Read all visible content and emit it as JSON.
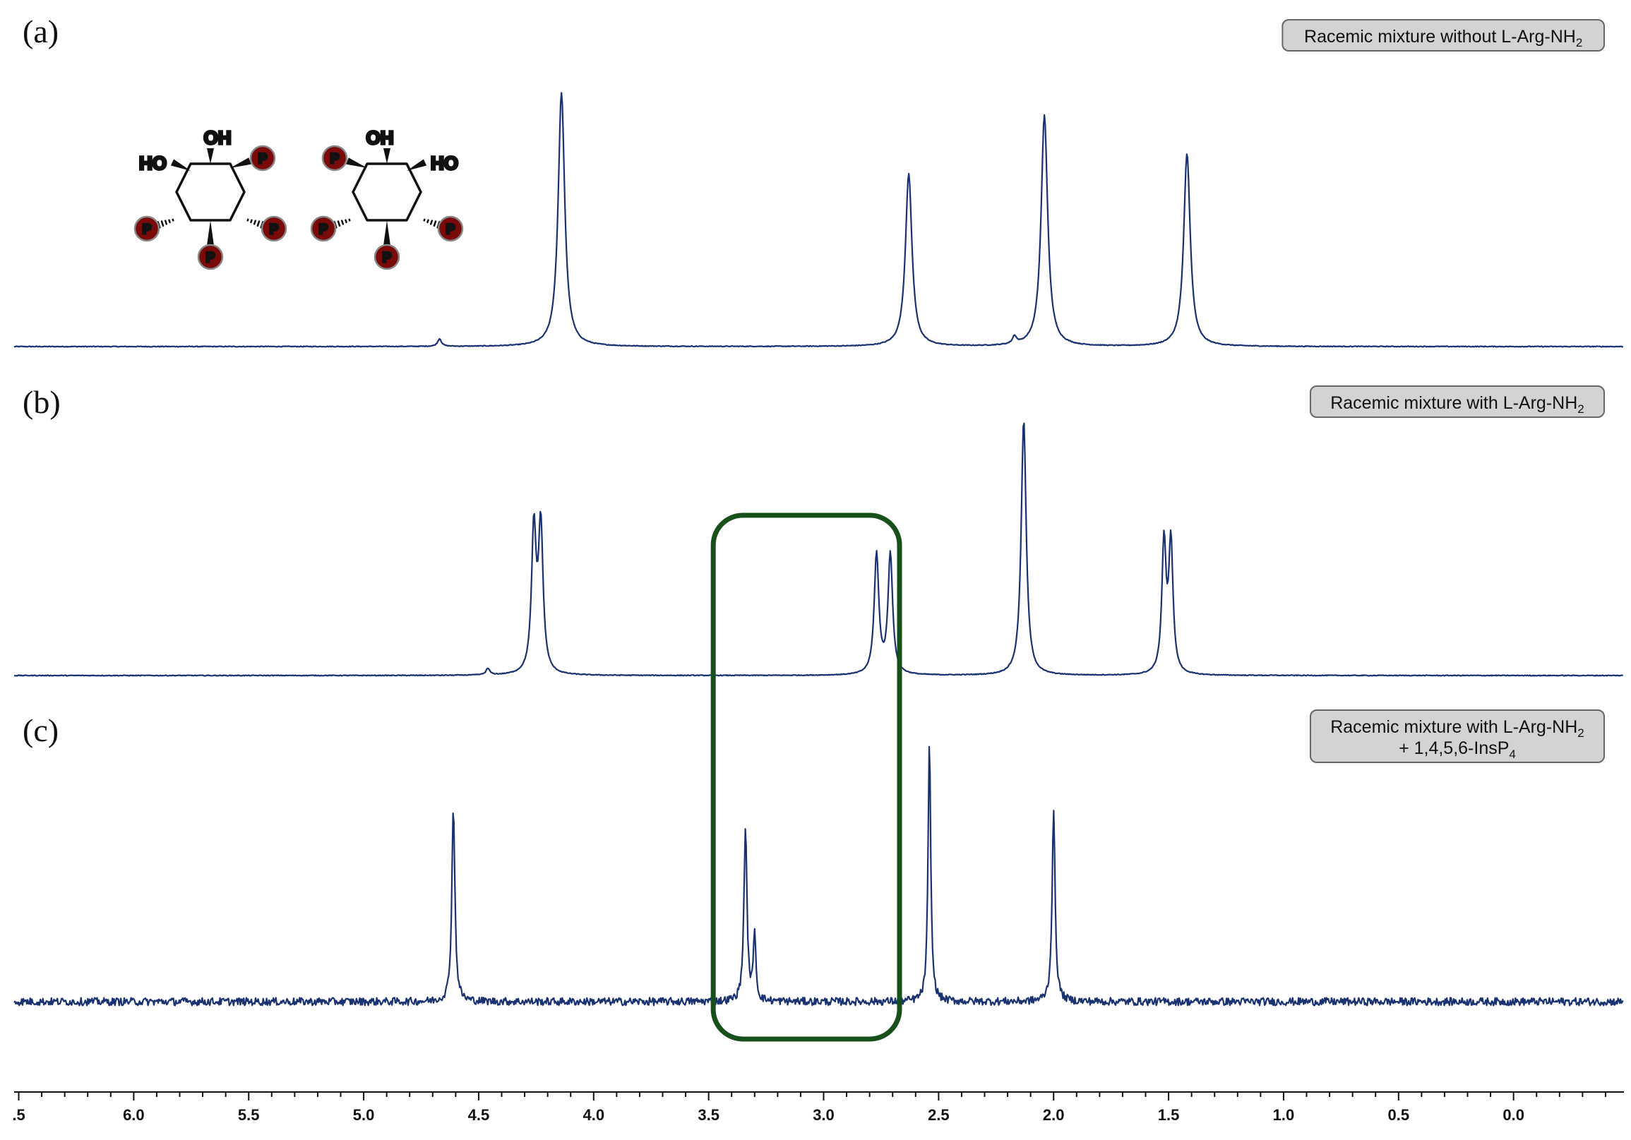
{
  "colors": {
    "spectrum": "#1a3272",
    "highlight_box": "#17501a",
    "badge_fill": "#d3d3d3",
    "badge_stroke": "#666666",
    "phosphate_fill": "#7a0a0a"
  },
  "icons": [
    "phosphate-circle-icon",
    "inositol-structure-icon"
  ],
  "chart_data": {
    "type": "line",
    "x_axis": {
      "range": [
        6.5,
        -0.5
      ],
      "reversed": true,
      "ticks": [
        ".5",
        "6.0",
        "5.5",
        "5.0",
        "4.5",
        "4.0",
        "3.5",
        "3.0",
        "2.5",
        "2.0",
        "1.5",
        "1.0",
        "0.5",
        "0.0"
      ],
      "tick_values": [
        6.5,
        6.0,
        5.5,
        5.0,
        4.5,
        4.0,
        3.5,
        3.0,
        2.5,
        2.0,
        1.5,
        1.0,
        0.5,
        0.0
      ]
    },
    "highlight": {
      "x_range": [
        3.48,
        2.67
      ],
      "spans_panels": [
        "b",
        "c"
      ]
    },
    "panels": [
      {
        "id": "a",
        "letter": "(a)",
        "badge": {
          "lines": [
            {
              "text": "Racemic mixture without L-Arg-NH",
              "sub": "2"
            }
          ]
        },
        "noise": 0.0,
        "peaks": [
          {
            "x": 4.14,
            "height": 1.0,
            "width": 0.017
          },
          {
            "x": 2.63,
            "height": 0.68,
            "width": 0.017
          },
          {
            "x": 2.04,
            "height": 0.91,
            "width": 0.017
          },
          {
            "x": 1.42,
            "height": 0.76,
            "width": 0.017
          },
          {
            "x": 4.67,
            "height": 0.03,
            "width": 0.01
          },
          {
            "x": 2.17,
            "height": 0.03,
            "width": 0.01
          }
        ]
      },
      {
        "id": "b",
        "letter": "(b)",
        "badge": {
          "lines": [
            {
              "text": "Racemic mixture with L-Arg-NH",
              "sub": "2"
            }
          ]
        },
        "noise": 0.0,
        "peaks": [
          {
            "x": 4.26,
            "height": 0.56,
            "width": 0.012
          },
          {
            "x": 4.23,
            "height": 0.57,
            "width": 0.012
          },
          {
            "x": 2.77,
            "height": 0.47,
            "width": 0.012
          },
          {
            "x": 2.71,
            "height": 0.47,
            "width": 0.012
          },
          {
            "x": 2.13,
            "height": 1.0,
            "width": 0.013
          },
          {
            "x": 1.52,
            "height": 0.51,
            "width": 0.011
          },
          {
            "x": 1.49,
            "height": 0.51,
            "width": 0.011
          },
          {
            "x": 4.46,
            "height": 0.025,
            "width": 0.01
          }
        ]
      },
      {
        "id": "c",
        "letter": "(c)",
        "badge": {
          "lines": [
            {
              "text": "Racemic mixture with L-Arg-NH",
              "sub": "2"
            },
            {
              "text": "+ 1,4,5,6-InsP",
              "sub": "4"
            }
          ]
        },
        "noise": 0.03,
        "peaks": [
          {
            "x": 4.61,
            "height": 0.76,
            "width": 0.008
          },
          {
            "x": 3.34,
            "height": 0.67,
            "width": 0.008
          },
          {
            "x": 3.3,
            "height": 0.27,
            "width": 0.006
          },
          {
            "x": 2.54,
            "height": 1.0,
            "width": 0.007
          },
          {
            "x": 2.0,
            "height": 0.73,
            "width": 0.008
          }
        ]
      }
    ]
  }
}
